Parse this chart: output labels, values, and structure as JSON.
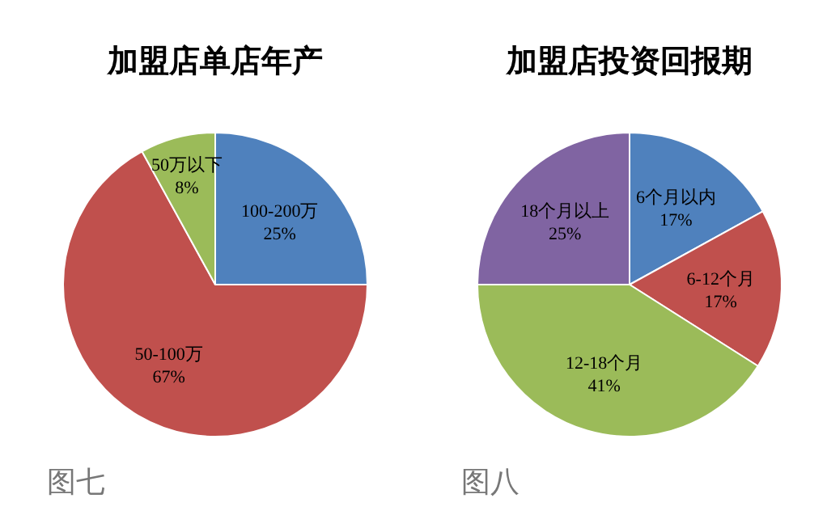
{
  "chart_data": [
    {
      "type": "pie",
      "title": "加盟店单店年产",
      "categories": [
        "100-200万",
        "50-100万",
        "50万以下"
      ],
      "values": [
        25,
        67,
        8
      ],
      "value_labels": [
        "25%",
        "67%",
        "8%"
      ],
      "colors": [
        "#4f81bd",
        "#c0504d",
        "#9bbb59"
      ],
      "annotations": [
        "图七"
      ]
    },
    {
      "type": "pie",
      "title": "加盟店投资回报期",
      "categories": [
        "6个月以内",
        "6-12个月",
        "12-18个月",
        "18个月以上"
      ],
      "values": [
        17,
        17,
        41,
        25
      ],
      "value_labels": [
        "17%",
        "17%",
        "41%",
        "25%"
      ],
      "colors": [
        "#4f81bd",
        "#c0504d",
        "#9bbb59",
        "#8064a2"
      ],
      "annotations": [
        "图八"
      ]
    }
  ]
}
